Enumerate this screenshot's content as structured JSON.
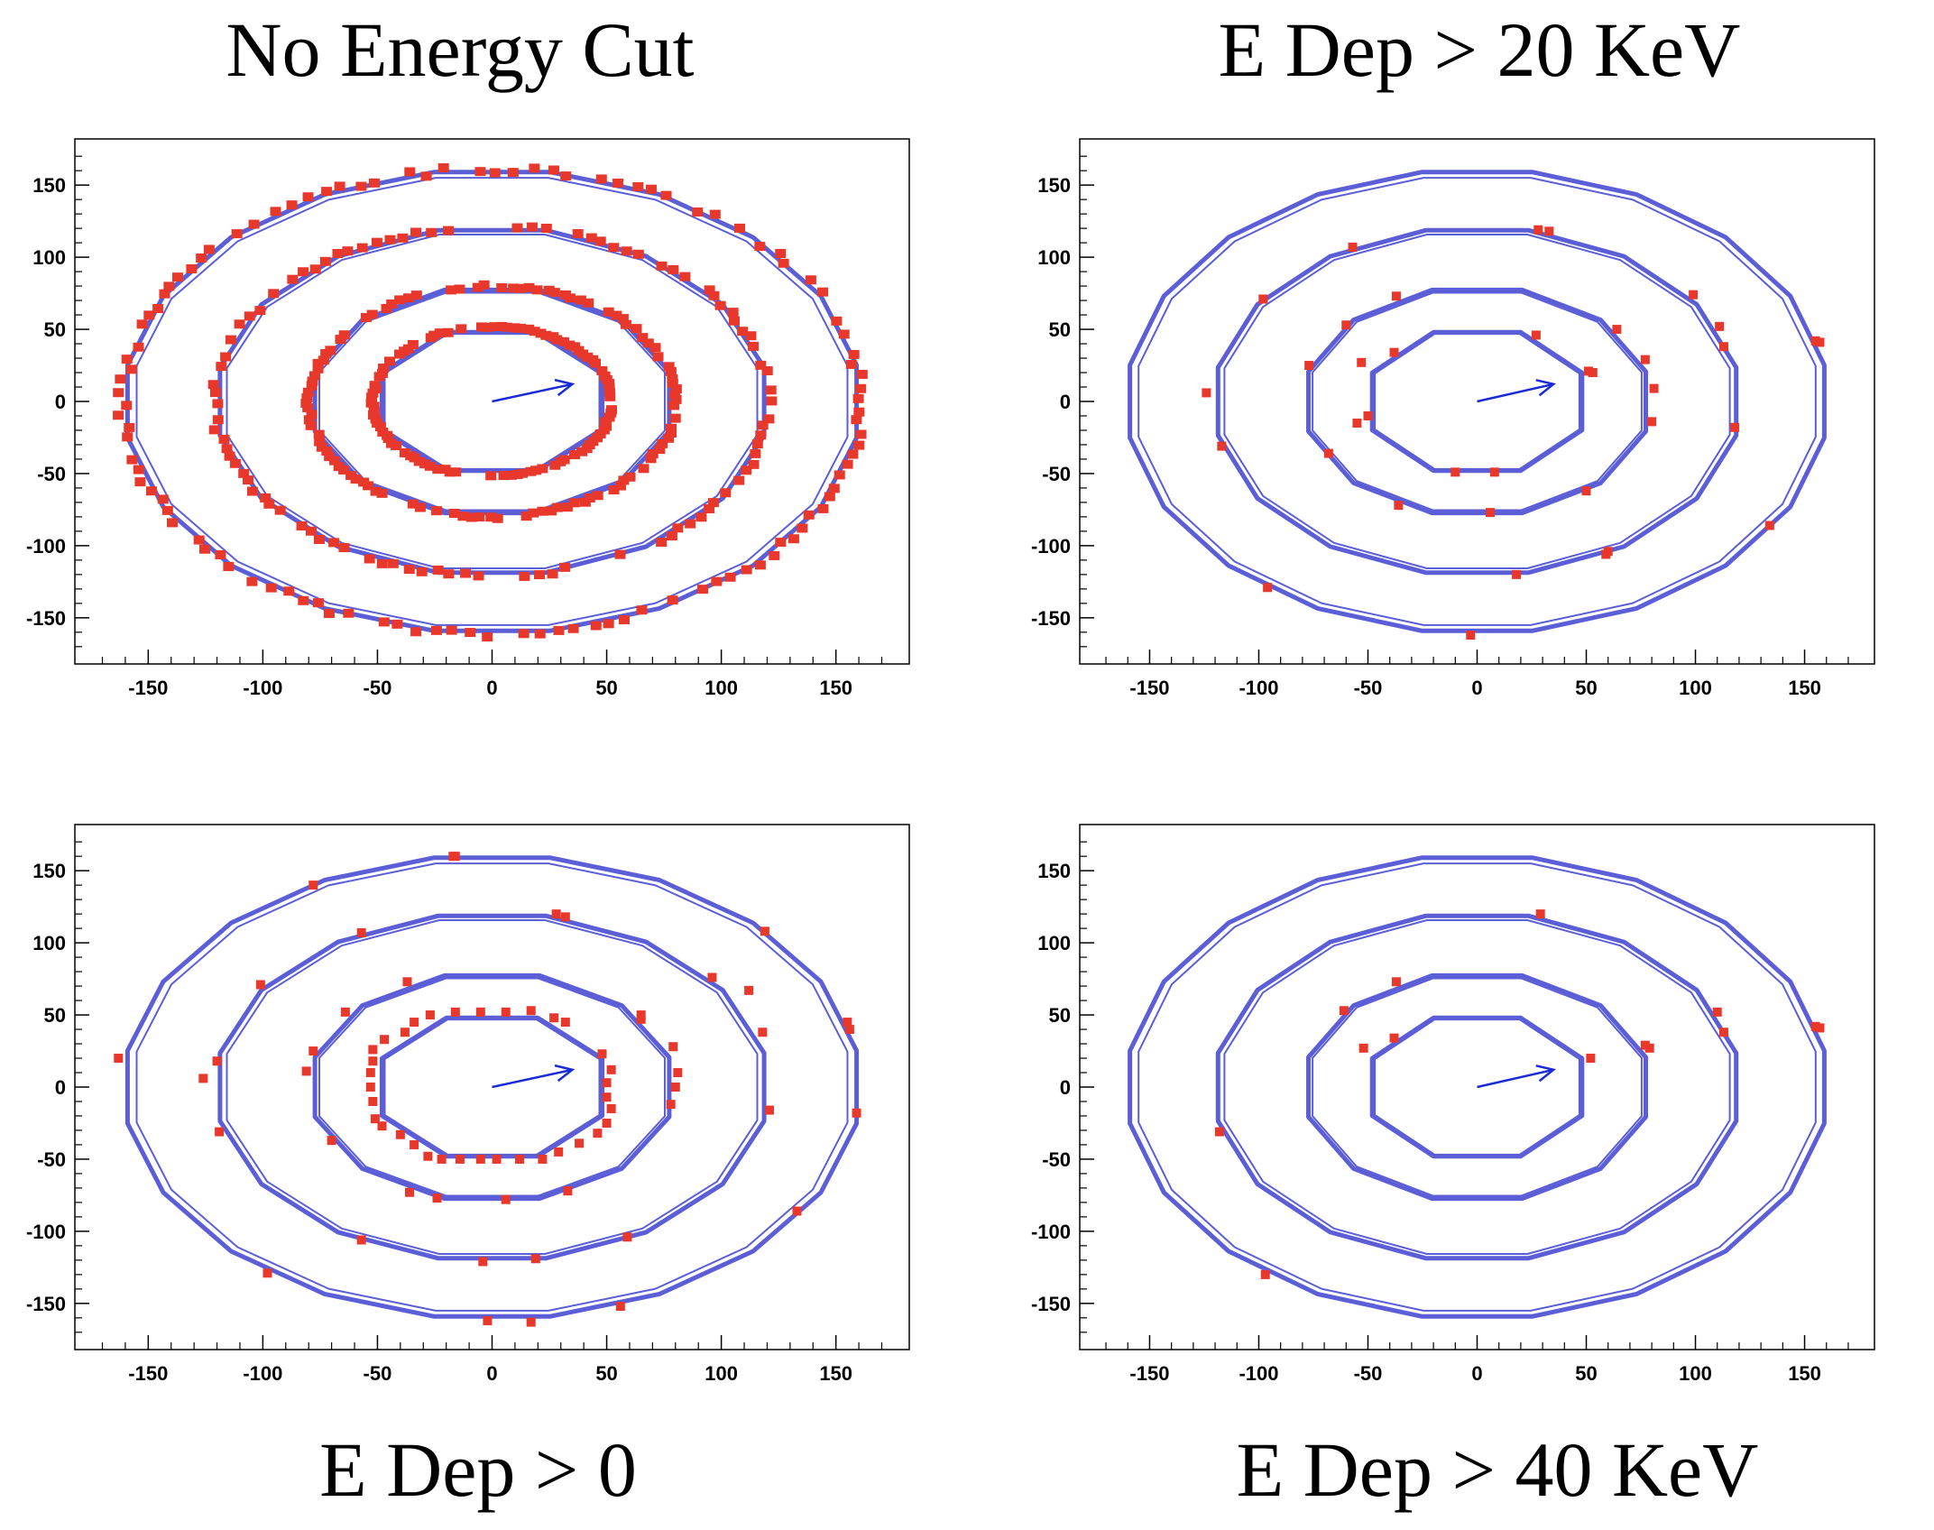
{
  "colors": {
    "ring": "#5b5ed6",
    "hit": "#e8372b",
    "arrow": "#1a2bd6",
    "frame": "#000000"
  },
  "chart_data": [
    {
      "type": "scatter",
      "title": "No Energy Cut",
      "xlim": [
        -182,
        182
      ],
      "ylim": [
        -182,
        182
      ],
      "x_ticks": [
        -150,
        -100,
        -50,
        0,
        50,
        100,
        150
      ],
      "y_ticks": [
        150,
        100,
        50,
        0,
        -50,
        -100,
        -150
      ],
      "rings": [
        {
          "ax": 52,
          "ay": 52,
          "sides": 8
        },
        {
          "ax": 80,
          "ay": 80,
          "sides": 12
        },
        {
          "ax": 121,
          "ay": 121,
          "sides": 16
        },
        {
          "ax": 161,
          "ay": 161,
          "sides": 20
        }
      ],
      "arrow": {
        "x1": 0,
        "y1": 0,
        "x2": 35,
        "y2": 12
      },
      "dense_rings": [
        {
          "ring": 0,
          "count": 110
        },
        {
          "ring": 1,
          "count": 130
        },
        {
          "ring": 2,
          "count": 120
        },
        {
          "ring": 3,
          "count": 130
        }
      ],
      "hits": []
    },
    {
      "type": "scatter",
      "title": "E Dep > 20 KeV",
      "xlim": [
        -182,
        182
      ],
      "ylim": [
        -182,
        182
      ],
      "x_ticks": [
        -150,
        -100,
        -50,
        0,
        50,
        100,
        150
      ],
      "y_ticks": [
        150,
        100,
        50,
        0,
        -50,
        -100,
        -150
      ],
      "rings": [
        {
          "ax": 52,
          "ay": 52,
          "sides": 8
        },
        {
          "ax": 80,
          "ay": 80,
          "sides": 12
        },
        {
          "ax": 121,
          "ay": 121,
          "sides": 16
        },
        {
          "ax": 161,
          "ay": 161,
          "sides": 20
        }
      ],
      "arrow": {
        "x1": 0,
        "y1": 0,
        "x2": 35,
        "y2": 12
      },
      "dense_rings": [],
      "hits": [
        [
          -53,
          27
        ],
        [
          -38,
          34
        ],
        [
          27,
          46
        ],
        [
          51,
          21
        ],
        [
          53,
          20
        ],
        [
          -50,
          -10
        ],
        [
          -55,
          -15
        ],
        [
          -10,
          -49
        ],
        [
          8,
          -49
        ],
        [
          50,
          -62
        ],
        [
          -37,
          73
        ],
        [
          -60,
          53
        ],
        [
          -77,
          25
        ],
        [
          64,
          50
        ],
        [
          77,
          29
        ],
        [
          81,
          9
        ],
        [
          80,
          -14
        ],
        [
          -68,
          -36
        ],
        [
          -36,
          -72
        ],
        [
          6,
          -77
        ],
        [
          -57,
          107
        ],
        [
          28,
          119
        ],
        [
          33,
          118
        ],
        [
          -98,
          71
        ],
        [
          -124,
          6
        ],
        [
          -117,
          -31
        ],
        [
          99,
          74
        ],
        [
          111,
          52
        ],
        [
          113,
          38
        ],
        [
          118,
          -18
        ],
        [
          18,
          -120
        ],
        [
          59,
          -106
        ],
        [
          60,
          -104
        ],
        [
          -96,
          -129
        ],
        [
          -3,
          -162
        ],
        [
          134,
          -86
        ],
        [
          155,
          42
        ],
        [
          157,
          41
        ]
      ]
    },
    {
      "type": "scatter",
      "title": "E Dep > 0",
      "xlim": [
        -182,
        182
      ],
      "ylim": [
        -182,
        182
      ],
      "x_ticks": [
        -150,
        -100,
        -50,
        0,
        50,
        100,
        150
      ],
      "y_ticks": [
        150,
        100,
        50,
        0,
        -50,
        -100,
        -150
      ],
      "rings": [
        {
          "ax": 52,
          "ay": 52,
          "sides": 8
        },
        {
          "ax": 80,
          "ay": 80,
          "sides": 12
        },
        {
          "ax": 121,
          "ay": 121,
          "sides": 16
        },
        {
          "ax": 161,
          "ay": 161,
          "sides": 20
        }
      ],
      "arrow": {
        "x1": 0,
        "y1": 0,
        "x2": 35,
        "y2": 12
      },
      "dense_rings": [],
      "hits": [
        [
          -16,
          52
        ],
        [
          -5,
          52
        ],
        [
          6,
          52
        ],
        [
          17,
          53
        ],
        [
          -27,
          50
        ],
        [
          -34,
          45
        ],
        [
          -38,
          38
        ],
        [
          -47,
          33
        ],
        [
          -52,
          26
        ],
        [
          -52,
          18
        ],
        [
          -53,
          10
        ],
        [
          -53,
          0
        ],
        [
          -52,
          -10
        ],
        [
          -51,
          -22
        ],
        [
          -48,
          -27
        ],
        [
          -40,
          -33
        ],
        [
          -34,
          -40
        ],
        [
          -28,
          -48
        ],
        [
          -22,
          -50
        ],
        [
          -14,
          -50
        ],
        [
          -5,
          -50
        ],
        [
          2,
          -50
        ],
        [
          12,
          -50
        ],
        [
          22,
          -50
        ],
        [
          29,
          -45
        ],
        [
          38,
          -39
        ],
        [
          46,
          -32
        ],
        [
          50,
          -25
        ],
        [
          52,
          -15
        ],
        [
          50,
          -7
        ],
        [
          50,
          3
        ],
        [
          52,
          12
        ],
        [
          48,
          23
        ],
        [
          32,
          45
        ],
        [
          27,
          48
        ],
        [
          -37,
          73
        ],
        [
          -64,
          52
        ],
        [
          -78,
          25
        ],
        [
          -81,
          11
        ],
        [
          -70,
          -37
        ],
        [
          -36,
          -73
        ],
        [
          -24,
          -77
        ],
        [
          6,
          -78
        ],
        [
          33,
          -72
        ],
        [
          79,
          28
        ],
        [
          81,
          10
        ],
        [
          80,
          0
        ],
        [
          78,
          -12
        ],
        [
          65,
          47
        ],
        [
          65,
          50
        ],
        [
          -17,
          160
        ],
        [
          -78,
          140
        ],
        [
          -57,
          107
        ],
        [
          28,
          120
        ],
        [
          32,
          118
        ],
        [
          119,
          108
        ],
        [
          -101,
          71
        ],
        [
          -126,
          6
        ],
        [
          -120,
          18
        ],
        [
          -119,
          -31
        ],
        [
          -57,
          -106
        ],
        [
          -4,
          -121
        ],
        [
          19,
          -119
        ],
        [
          59,
          -104
        ],
        [
          -98,
          -129
        ],
        [
          96,
          76
        ],
        [
          112,
          67
        ],
        [
          118,
          38
        ],
        [
          121,
          -16
        ],
        [
          133,
          -86
        ],
        [
          -163,
          20
        ],
        [
          155,
          45
        ],
        [
          156,
          40
        ],
        [
          159,
          -18
        ],
        [
          -2,
          -162
        ],
        [
          17,
          -163
        ],
        [
          56,
          -152
        ],
        [
          -16,
          160
        ]
      ]
    },
    {
      "type": "scatter",
      "title": "E Dep > 40 KeV",
      "xlim": [
        -182,
        182
      ],
      "ylim": [
        -182,
        182
      ],
      "x_ticks": [
        -150,
        -100,
        -50,
        0,
        50,
        100,
        150
      ],
      "y_ticks": [
        150,
        100,
        50,
        0,
        -50,
        -100,
        -150
      ],
      "rings": [
        {
          "ax": 52,
          "ay": 52,
          "sides": 8
        },
        {
          "ax": 80,
          "ay": 80,
          "sides": 12
        },
        {
          "ax": 121,
          "ay": 121,
          "sides": 16
        },
        {
          "ax": 161,
          "ay": 161,
          "sides": 20
        }
      ],
      "arrow": {
        "x1": 0,
        "y1": 0,
        "x2": 35,
        "y2": 12
      },
      "dense_rings": [],
      "hits": [
        [
          -38,
          34
        ],
        [
          -52,
          27
        ],
        [
          52,
          20
        ],
        [
          -37,
          73
        ],
        [
          -61,
          53
        ],
        [
          77,
          29
        ],
        [
          79,
          27
        ],
        [
          29,
          120
        ],
        [
          110,
          52
        ],
        [
          113,
          38
        ],
        [
          -118,
          -31
        ],
        [
          -97,
          -130
        ],
        [
          155,
          42
        ],
        [
          157,
          41
        ]
      ]
    }
  ]
}
